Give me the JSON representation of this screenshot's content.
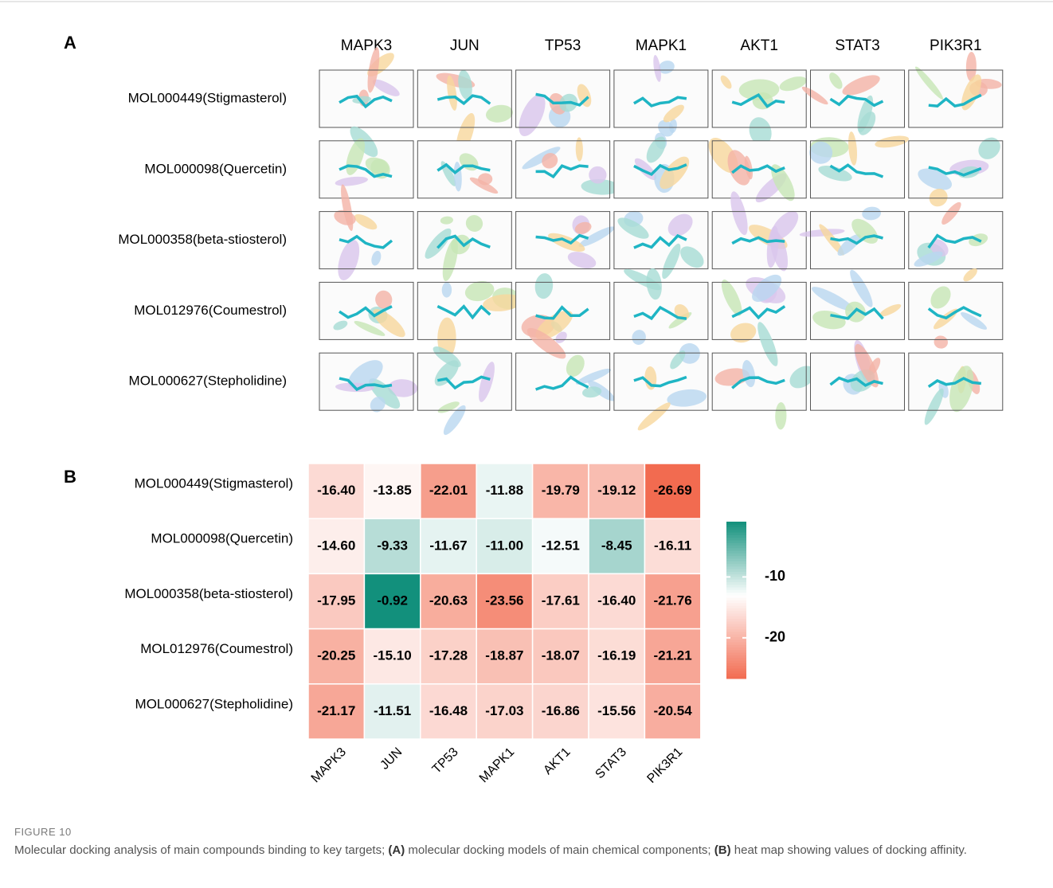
{
  "panel_a": {
    "label": "A",
    "columns": [
      "MAPK3",
      "JUN",
      "TP53",
      "MAPK1",
      "AKT1",
      "STAT3",
      "PIK3R1"
    ],
    "rows": [
      "MOL000449(Stigmasterol)",
      "MOL000098(Quercetin)",
      "MOL000358(beta-stiosterol)",
      "MOL012976(Coumestrol)",
      "MOL000627(Stepholidine)"
    ]
  },
  "chart_data": {
    "type": "heatmap",
    "label": "B",
    "x": [
      "MAPK3",
      "JUN",
      "TP53",
      "MAPK1",
      "AKT1",
      "STAT3",
      "PIK3R1"
    ],
    "y": [
      "MOL000449(Stigmasterol)",
      "MOL000098(Quercetin)",
      "MOL000358(beta-stiosterol)",
      "MOL012976(Coumestrol)",
      "MOL000627(Stepholidine)"
    ],
    "values": [
      [
        -16.4,
        -13.85,
        -22.01,
        -11.88,
        -19.79,
        -19.12,
        -26.69
      ],
      [
        -14.6,
        -9.33,
        -11.67,
        -11.0,
        -12.51,
        -8.45,
        -16.11
      ],
      [
        -17.95,
        -0.92,
        -20.63,
        -23.56,
        -17.61,
        -16.4,
        -21.76
      ],
      [
        -20.25,
        -15.1,
        -17.28,
        -18.87,
        -18.07,
        -16.19,
        -21.21
      ],
      [
        -21.17,
        -11.51,
        -16.48,
        -17.03,
        -16.86,
        -15.56,
        -20.54
      ]
    ],
    "value_labels": [
      [
        "-16.40",
        "-13.85",
        "-22.01",
        "-11.88",
        "-19.79",
        "-19.12",
        "-26.69"
      ],
      [
        "-14.60",
        "-9.33",
        "-11.67",
        "-11.00",
        "-12.51",
        "-8.45",
        "-16.11"
      ],
      [
        "-17.95",
        "-0.92",
        "-20.63",
        "-23.56",
        "-17.61",
        "-16.40",
        "-21.76"
      ],
      [
        "-20.25",
        "-15.10",
        "-17.28",
        "-18.87",
        "-18.07",
        "-16.19",
        "-21.21"
      ],
      [
        "-21.17",
        "-11.51",
        "-16.48",
        "-17.03",
        "-16.86",
        "-15.56",
        "-20.54"
      ]
    ],
    "color_stops": [
      {
        "value": -26.69,
        "color": "#f26b50"
      },
      {
        "value": -13,
        "color": "#ffffff"
      },
      {
        "value": -0.92,
        "color": "#12907c"
      }
    ],
    "colorbar_ticks": [
      -10,
      -20
    ]
  },
  "caption": {
    "label": "FIGURE 10",
    "parts": [
      "Molecular docking analysis of main compounds binding to key targets; ",
      "(A)",
      " molecular docking models of main chemical components; ",
      "(B)",
      " heat map showing values of docking affinity."
    ]
  }
}
